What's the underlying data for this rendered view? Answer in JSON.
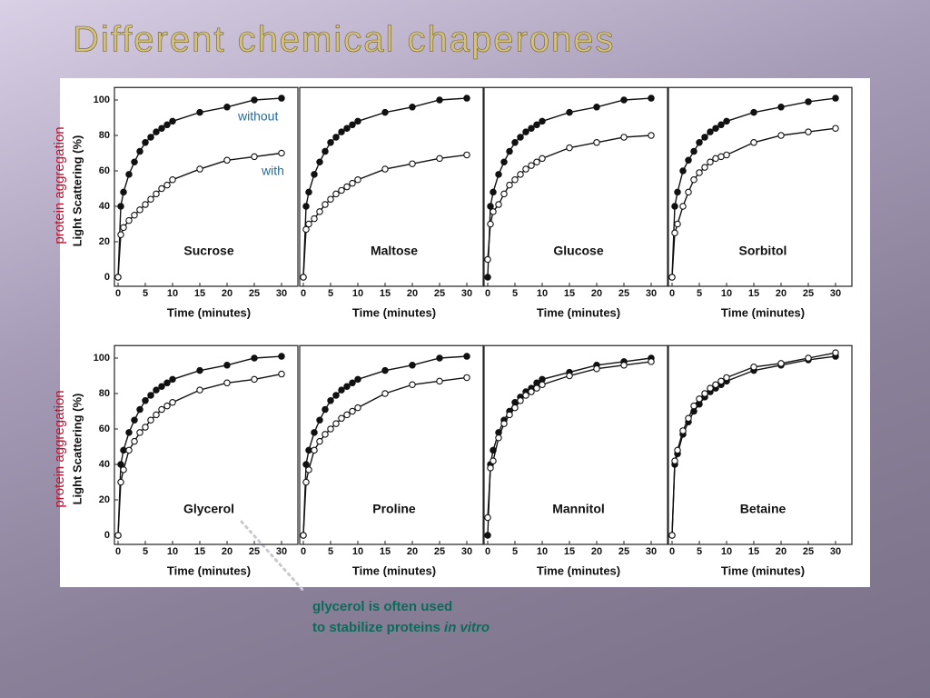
{
  "slide": {
    "title": "Different chemical chaperones",
    "side_labels": [
      "protein aggregation",
      "protein aggregation"
    ],
    "note": [
      "glycerol is often used",
      "to stabilize proteins",
      "in vitro"
    ]
  },
  "chart_data": [
    {
      "type": "line",
      "name": "Sucrose",
      "ylabel": "Light Scattering (%)",
      "xlabel": "Time (minutes)",
      "annotations": [
        "without",
        "with"
      ],
      "x": [
        0,
        0.5,
        1,
        2,
        3,
        4,
        5,
        6,
        7,
        8,
        9,
        10,
        15,
        20,
        25,
        30
      ],
      "xlim": [
        0,
        30
      ],
      "xticks": [
        0,
        5,
        10,
        15,
        20,
        25,
        30
      ],
      "ylim": [
        0,
        105
      ],
      "yticks": [
        0,
        20,
        40,
        60,
        80,
        100
      ],
      "series": [
        {
          "color": "#111111",
          "marker": "filled",
          "values": [
            0,
            40,
            48,
            58,
            65,
            71,
            76,
            79,
            82,
            84,
            86,
            88,
            93,
            96,
            100,
            101
          ]
        },
        {
          "color": "#111111",
          "marker": "open",
          "values": [
            0,
            24,
            28,
            32,
            35,
            38,
            41,
            44,
            47,
            50,
            52,
            55,
            61,
            66,
            68,
            70
          ]
        }
      ]
    },
    {
      "type": "line",
      "name": "Maltose",
      "xlabel": "Time (minutes)",
      "x": [
        0,
        0.5,
        1,
        2,
        3,
        4,
        5,
        6,
        7,
        8,
        9,
        10,
        15,
        20,
        25,
        30
      ],
      "xlim": [
        0,
        30
      ],
      "xticks": [
        0,
        5,
        10,
        15,
        20,
        25,
        30
      ],
      "ylim": [
        0,
        105
      ],
      "series": [
        {
          "color": "#111111",
          "marker": "filled",
          "values": [
            0,
            40,
            48,
            58,
            65,
            71,
            76,
            79,
            82,
            84,
            86,
            88,
            93,
            96,
            100,
            101
          ]
        },
        {
          "color": "#111111",
          "marker": "open",
          "values": [
            0,
            27,
            30,
            33,
            37,
            41,
            44,
            47,
            49,
            51,
            53,
            55,
            61,
            64,
            67,
            69
          ]
        }
      ]
    },
    {
      "type": "line",
      "name": "Glucose",
      "xlabel": "Time (minutes)",
      "x": [
        0,
        0.5,
        1,
        2,
        3,
        4,
        5,
        6,
        7,
        8,
        9,
        10,
        15,
        20,
        25,
        30
      ],
      "xlim": [
        0,
        30
      ],
      "xticks": [
        0,
        5,
        10,
        15,
        20,
        25,
        30
      ],
      "ylim": [
        0,
        105
      ],
      "series": [
        {
          "color": "#111111",
          "marker": "filled",
          "values": [
            0,
            40,
            48,
            58,
            65,
            71,
            76,
            79,
            82,
            84,
            86,
            88,
            93,
            96,
            100,
            101
          ]
        },
        {
          "color": "#111111",
          "marker": "open",
          "values": [
            10,
            30,
            37,
            41,
            47,
            52,
            55,
            58,
            61,
            63,
            65,
            67,
            73,
            76,
            79,
            80
          ]
        }
      ]
    },
    {
      "type": "line",
      "name": "Sorbitol",
      "xlabel": "Time (minutes)",
      "x": [
        0,
        0.5,
        1,
        2,
        3,
        4,
        5,
        6,
        7,
        8,
        9,
        10,
        15,
        20,
        25,
        30
      ],
      "xlim": [
        0,
        30
      ],
      "xticks": [
        0,
        5,
        10,
        15,
        20,
        25,
        30
      ],
      "ylim": [
        0,
        105
      ],
      "series": [
        {
          "color": "#111111",
          "marker": "filled",
          "values": [
            0,
            40,
            48,
            60,
            66,
            71,
            76,
            79,
            82,
            84,
            86,
            88,
            93,
            96,
            99,
            101
          ]
        },
        {
          "color": "#111111",
          "marker": "open",
          "values": [
            0,
            25,
            30,
            40,
            48,
            55,
            59,
            62,
            65,
            67,
            68,
            69,
            76,
            80,
            82,
            84
          ]
        }
      ]
    },
    {
      "type": "line",
      "name": "Glycerol",
      "ylabel": "Light Scattering (%)",
      "xlabel": "Time (minutes)",
      "x": [
        0,
        0.5,
        1,
        2,
        3,
        4,
        5,
        6,
        7,
        8,
        9,
        10,
        15,
        20,
        25,
        30
      ],
      "xlim": [
        0,
        30
      ],
      "xticks": [
        0,
        5,
        10,
        15,
        20,
        25,
        30
      ],
      "ylim": [
        0,
        105
      ],
      "yticks": [
        0,
        20,
        40,
        60,
        80,
        100
      ],
      "series": [
        {
          "color": "#111111",
          "marker": "filled",
          "values": [
            0,
            40,
            48,
            58,
            65,
            71,
            76,
            79,
            82,
            84,
            86,
            88,
            93,
            96,
            100,
            101
          ]
        },
        {
          "color": "#111111",
          "marker": "open",
          "values": [
            0,
            30,
            37,
            48,
            53,
            58,
            61,
            65,
            68,
            71,
            73,
            75,
            82,
            86,
            88,
            91
          ]
        }
      ]
    },
    {
      "type": "line",
      "name": "Proline",
      "xlabel": "Time (minutes)",
      "x": [
        0,
        0.5,
        1,
        2,
        3,
        4,
        5,
        6,
        7,
        8,
        9,
        10,
        15,
        20,
        25,
        30
      ],
      "xlim": [
        0,
        30
      ],
      "xticks": [
        0,
        5,
        10,
        15,
        20,
        25,
        30
      ],
      "ylim": [
        0,
        105
      ],
      "series": [
        {
          "color": "#111111",
          "marker": "filled",
          "values": [
            0,
            40,
            48,
            58,
            65,
            71,
            76,
            79,
            82,
            84,
            86,
            88,
            93,
            96,
            100,
            101
          ]
        },
        {
          "color": "#111111",
          "marker": "open",
          "values": [
            0,
            30,
            37,
            48,
            53,
            57,
            60,
            63,
            66,
            68,
            70,
            72,
            80,
            85,
            87,
            89
          ]
        }
      ]
    },
    {
      "type": "line",
      "name": "Mannitol",
      "xlabel": "Time (minutes)",
      "x": [
        0,
        0.5,
        1,
        2,
        3,
        4,
        5,
        6,
        7,
        8,
        9,
        10,
        15,
        20,
        25,
        30
      ],
      "xlim": [
        0,
        30
      ],
      "xticks": [
        0,
        5,
        10,
        15,
        20,
        25,
        30
      ],
      "ylim": [
        0,
        105
      ],
      "series": [
        {
          "color": "#111111",
          "marker": "filled",
          "values": [
            0,
            40,
            48,
            58,
            65,
            70,
            75,
            78,
            81,
            83,
            86,
            88,
            92,
            96,
            98,
            100
          ]
        },
        {
          "color": "#111111",
          "marker": "open",
          "values": [
            10,
            38,
            42,
            55,
            63,
            68,
            72,
            76,
            79,
            81,
            83,
            85,
            90,
            94,
            96,
            98
          ]
        }
      ]
    },
    {
      "type": "line",
      "name": "Betaine",
      "xlabel": "Time (minutes)",
      "x": [
        0,
        0.5,
        1,
        2,
        3,
        4,
        5,
        6,
        7,
        8,
        9,
        10,
        15,
        20,
        25,
        30
      ],
      "xlim": [
        0,
        30
      ],
      "xticks": [
        0,
        5,
        10,
        15,
        20,
        25,
        30
      ],
      "ylim": [
        0,
        105
      ],
      "series": [
        {
          "color": "#111111",
          "marker": "filled",
          "values": [
            0,
            40,
            46,
            57,
            64,
            70,
            74,
            78,
            81,
            83,
            85,
            87,
            93,
            96,
            99,
            101
          ]
        },
        {
          "color": "#111111",
          "marker": "open",
          "values": [
            0,
            42,
            48,
            59,
            66,
            73,
            77,
            80,
            83,
            85,
            87,
            89,
            95,
            97,
            100,
            103
          ]
        }
      ]
    }
  ]
}
